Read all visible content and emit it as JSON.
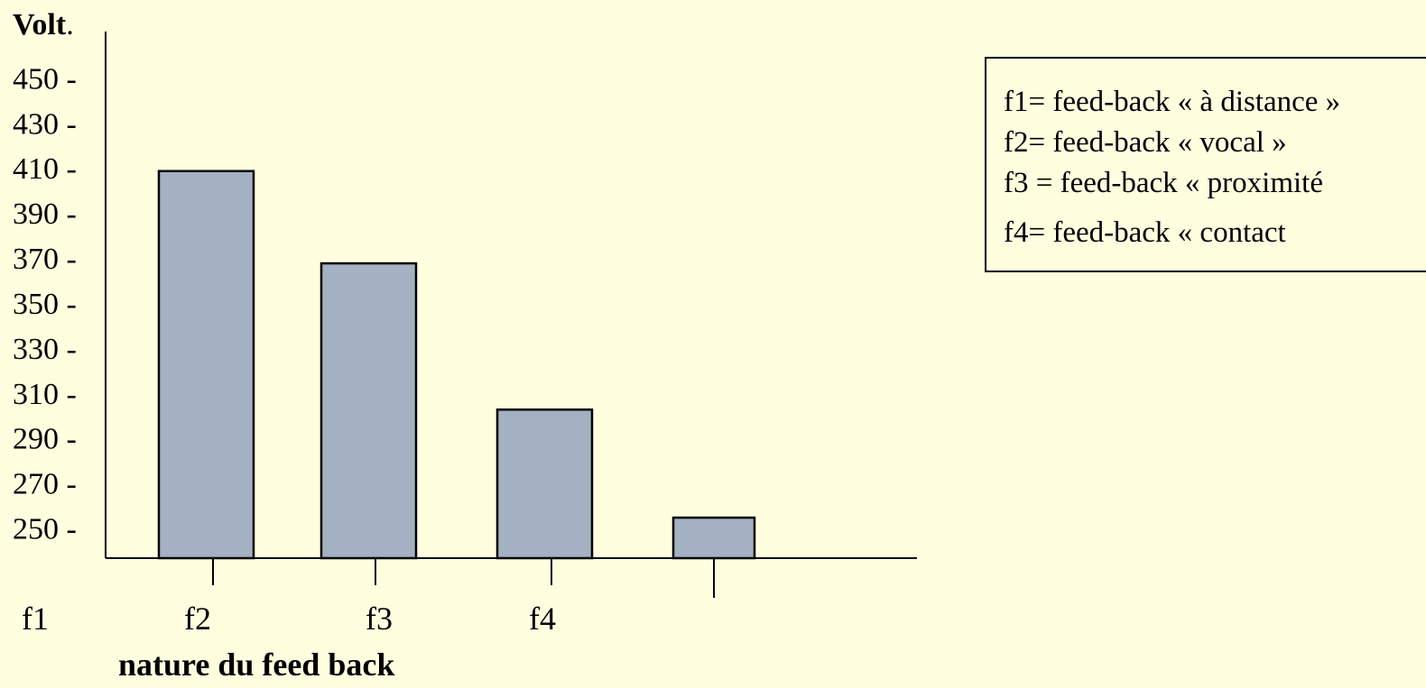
{
  "chart_data": {
    "type": "bar",
    "ylabel": "Volt",
    "ylabel_suffix": ".",
    "xlabel": "nature du feed back",
    "yticks": [
      450,
      430,
      410,
      390,
      370,
      350,
      330,
      310,
      290,
      270,
      250
    ],
    "ytick_suffix": " -",
    "categories": [
      "f1",
      "f2",
      "f3",
      "f4"
    ],
    "values": [
      409,
      368,
      303,
      255
    ],
    "ylim": [
      237,
      471
    ],
    "grid": false,
    "bar_color": "#A3B1C2",
    "legend": {
      "placement": "top-right",
      "entries": [
        "f1= feed-back « à distance »",
        "f2= feed-back « vocal »",
        "f3 = feed-back « proximité",
        "f4= feed-back « contact"
      ]
    }
  }
}
